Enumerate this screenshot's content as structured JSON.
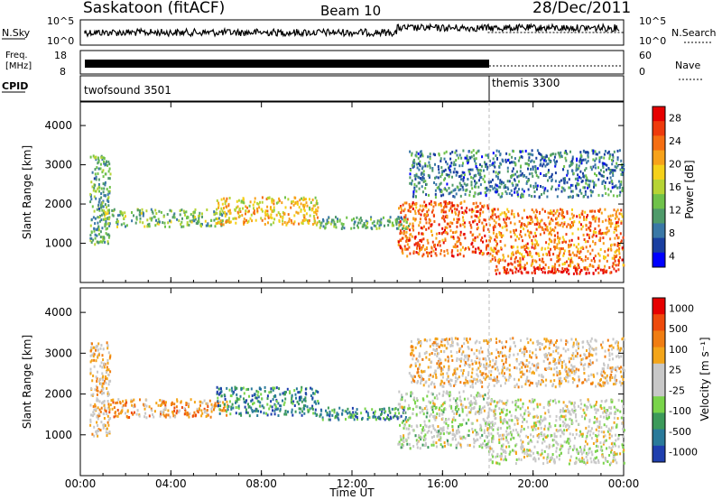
{
  "header": {
    "station": "Saskatoon (fitACF)",
    "beam": "Beam 10",
    "date": "28/Dec/2011"
  },
  "status_panels": {
    "nsky_label": "N.Sky",
    "nsky_ticks": [
      "10^5",
      "10^0"
    ],
    "nsearch_label": "N.Search",
    "nsearch_ticks": [
      "10^5",
      "10^0"
    ],
    "freq_label_line1": "Freq.",
    "freq_label_line2": "[MHz]",
    "freq_ticks": [
      "18",
      "8"
    ],
    "nave_label": "Nave",
    "nave_ticks": [
      "60",
      "0"
    ],
    "cpid_label": "CPID",
    "cpid_segments": [
      {
        "name": "twofsound 3501",
        "start_hour": 0,
        "end_hour": 18
      },
      {
        "name": "themis 3300",
        "start_hour": 18,
        "end_hour": 24
      }
    ]
  },
  "chart_data": [
    {
      "type": "heatmap",
      "panel": "power",
      "ylabel": "Slant Range [km]",
      "yticks": [
        "1000",
        "2000",
        "3000",
        "4000"
      ],
      "ylim": [
        0,
        4600
      ],
      "xlim": [
        0,
        24
      ],
      "colorbar_label": "Power [dB]",
      "colorbar_ticks": [
        "28",
        "24",
        "20",
        "16",
        "12",
        "8",
        "4"
      ],
      "colorscale": [
        "#0000ff",
        "#1a3fa0",
        "#3a78a6",
        "#4f9b6a",
        "#6fc24a",
        "#b6d435",
        "#f5d11a",
        "#f7a21a",
        "#f56e12",
        "#ee3a0c",
        "#e60000"
      ],
      "regions": [
        {
          "x": [
            0.4,
            1.3
          ],
          "y": [
            1000,
            3300
          ],
          "level": 0.35
        },
        {
          "x": [
            1.0,
            6.5
          ],
          "y": [
            1450,
            1900
          ],
          "level": 0.4
        },
        {
          "x": [
            6.0,
            10.5
          ],
          "y": [
            1500,
            2200
          ],
          "level": 0.6
        },
        {
          "x": [
            10.5,
            14.5
          ],
          "y": [
            1400,
            1700
          ],
          "level": 0.35
        },
        {
          "x": [
            14.0,
            18.0
          ],
          "y": [
            700,
            2100
          ],
          "level": 0.8
        },
        {
          "x": [
            18.0,
            24.0
          ],
          "y": [
            400,
            1900
          ],
          "level": 0.75
        },
        {
          "x": [
            18.3,
            23.8
          ],
          "y": [
            250,
            400
          ],
          "level": 0.95
        },
        {
          "x": [
            14.5,
            24.0
          ],
          "y": [
            2200,
            3400
          ],
          "level": 0.25
        }
      ]
    },
    {
      "type": "heatmap",
      "panel": "velocity",
      "ylabel": "Slant Range [km]",
      "yticks": [
        "1000",
        "2000",
        "3000",
        "4000"
      ],
      "xlabel": "Time UT",
      "xticks": [
        "00:00",
        "04:00",
        "08:00",
        "12:00",
        "16:00",
        "20:00",
        "00:00"
      ],
      "ylim": [
        0,
        4600
      ],
      "xlim": [
        0,
        24
      ],
      "colorbar_label": "Velocity [m s⁻¹]",
      "colorbar_ticks": [
        "1000",
        "500",
        "100",
        "25",
        "-25",
        "-100",
        "-500",
        "-1000"
      ],
      "colorscale": [
        "#1f3fae",
        "#2a7a9a",
        "#3c9a5a",
        "#79d44a",
        "#c8c8c8",
        "#c8c8c8",
        "#f3a51a",
        "#f07d12",
        "#ee4a0c",
        "#e60000"
      ],
      "regions": [
        {
          "x": [
            0.4,
            1.3
          ],
          "y": [
            1000,
            3300
          ],
          "level": 0.6
        },
        {
          "x": [
            1.0,
            6.5
          ],
          "y": [
            1450,
            1900
          ],
          "level": 0.7
        },
        {
          "x": [
            6.0,
            10.5
          ],
          "y": [
            1500,
            2200
          ],
          "level": 0.2
        },
        {
          "x": [
            10.5,
            14.5
          ],
          "y": [
            1400,
            1700
          ],
          "level": 0.2
        },
        {
          "x": [
            14.0,
            18.0
          ],
          "y": [
            700,
            2100
          ],
          "level": 0.45
        },
        {
          "x": [
            18.0,
            24.0
          ],
          "y": [
            300,
            1900
          ],
          "level": 0.48
        },
        {
          "x": [
            14.5,
            24.0
          ],
          "y": [
            2200,
            3400
          ],
          "level": 0.6
        }
      ]
    }
  ]
}
